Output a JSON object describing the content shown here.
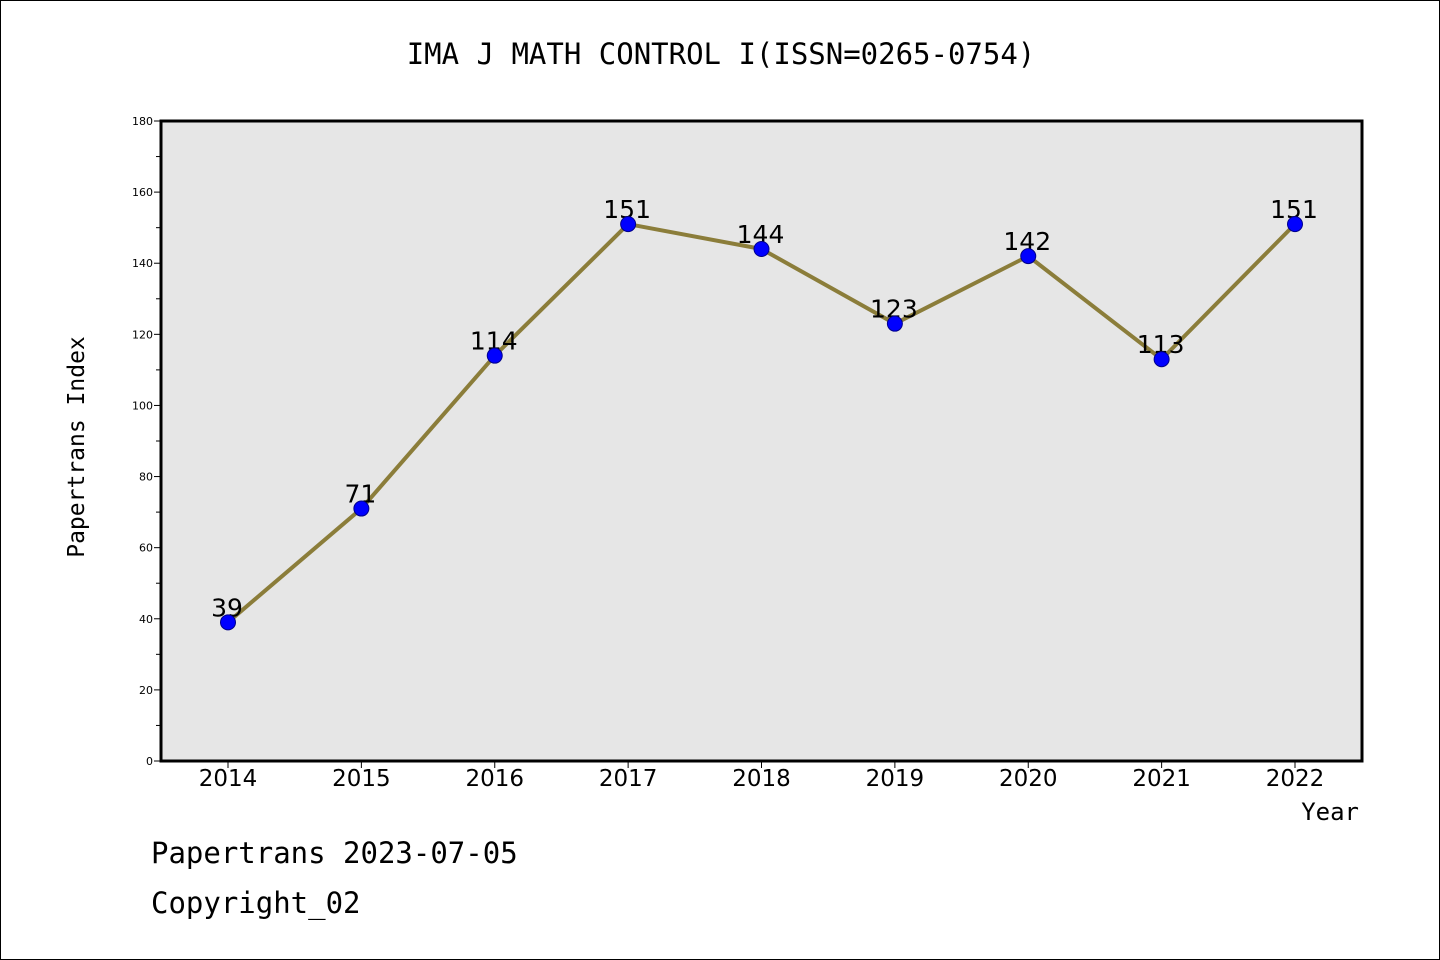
{
  "chart_data": {
    "type": "line",
    "title": "IMA J MATH CONTROL I(ISSN=0265-0754)",
    "xlabel": "Year",
    "ylabel": "Papertrans Index",
    "categories": [
      "2014",
      "2015",
      "2016",
      "2017",
      "2018",
      "2019",
      "2020",
      "2021",
      "2022"
    ],
    "values": [
      39,
      71,
      114,
      151,
      144,
      123,
      142,
      113,
      151
    ],
    "data_labels": [
      "39",
      "71",
      "114",
      "151",
      "144",
      "123",
      "142",
      "113",
      "151"
    ],
    "ylim": [
      0,
      180
    ],
    "yticks": [
      0,
      20,
      40,
      60,
      80,
      100,
      120,
      140,
      160,
      180
    ],
    "ytick_labels": [
      "0",
      "20",
      "40",
      "60",
      "80",
      "100",
      "120",
      "140",
      "160",
      "180"
    ],
    "grid": false,
    "legend": "none",
    "colors": {
      "line": "#8B7D3A",
      "marker": "#0000FF",
      "marker_edge": "#00008B",
      "plot_background": "#E6E6E6"
    }
  },
  "footer": {
    "stamp": "Papertrans 2023-07-05",
    "copyright": "Copyright_02"
  }
}
